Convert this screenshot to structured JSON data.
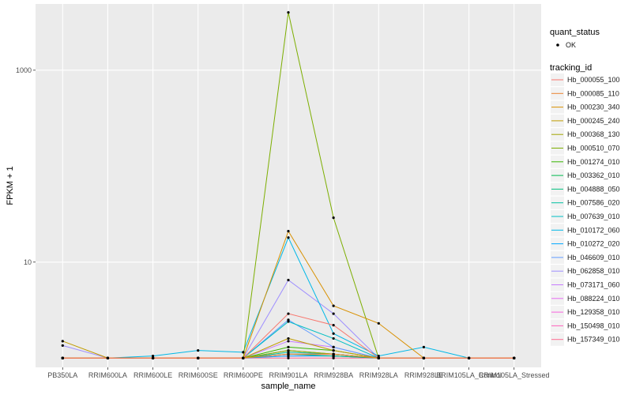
{
  "chart_data": {
    "type": "line",
    "title": "",
    "xlabel": "sample_name",
    "ylabel": "FPKM + 1",
    "y_scale": "log10",
    "ylim": [
      0.8,
      4900
    ],
    "y_ticks": [
      10,
      1000
    ],
    "y_tick_labels": [
      "10",
      "1000"
    ],
    "grid": true,
    "legend_position": "right",
    "categories": [
      "PB350LA",
      "RRIM600LA",
      "RRIM600LE",
      "RRIM600SE",
      "RRIM600PE",
      "RRIM901LA",
      "RRIM928BA",
      "RRIM928LA",
      "RRIM928LE",
      "BRIM105LA_Control",
      "RRIM105LA_Stressed"
    ],
    "point_color": "#000000",
    "shape_legend": {
      "title": "quant_status",
      "entries": [
        "OK"
      ]
    },
    "color_legend_title": "tracking_id",
    "series": [
      {
        "name": "Hb_000055_100",
        "color": "#F8766D",
        "values": [
          1,
          1,
          1,
          1,
          1,
          2.9,
          2.2,
          1,
          1,
          1,
          1
        ]
      },
      {
        "name": "Hb_000085_110",
        "color": "#EA8331",
        "values": [
          1,
          1,
          1,
          1,
          1,
          1.1,
          1.1,
          1,
          1,
          1,
          1
        ]
      },
      {
        "name": "Hb_000230_340",
        "color": "#D89000",
        "values": [
          1,
          1,
          1,
          1,
          1,
          21,
          3.5,
          2.3,
          1,
          1,
          1
        ]
      },
      {
        "name": "Hb_000245_240",
        "color": "#C09B00",
        "values": [
          1.5,
          1,
          1,
          1,
          1,
          1.6,
          1.2,
          1,
          1,
          1,
          1
        ]
      },
      {
        "name": "Hb_000368_130",
        "color": "#A3A500",
        "values": [
          1,
          1,
          1,
          1,
          1,
          1.2,
          1.1,
          1,
          1,
          1,
          1
        ]
      },
      {
        "name": "Hb_000510_070",
        "color": "#7CAE00",
        "values": [
          1,
          1,
          1,
          1,
          1,
          4000,
          29,
          1,
          1,
          1,
          1
        ]
      },
      {
        "name": "Hb_001274_010",
        "color": "#39B600",
        "values": [
          1,
          1,
          1,
          1,
          1,
          1.3,
          1.2,
          1,
          1,
          1,
          1
        ]
      },
      {
        "name": "Hb_003362_010",
        "color": "#00BB4E",
        "values": [
          1,
          1,
          1,
          1,
          1,
          1.2,
          1.1,
          1,
          1,
          1,
          1
        ]
      },
      {
        "name": "Hb_004888_050",
        "color": "#00BF7D",
        "values": [
          1,
          1,
          1,
          1,
          1,
          1.1,
          1.05,
          1,
          1,
          1,
          1
        ]
      },
      {
        "name": "Hb_007586_020",
        "color": "#00C1A3",
        "values": [
          1,
          1,
          1,
          1,
          1,
          1.15,
          1.1,
          1,
          1,
          1,
          1
        ]
      },
      {
        "name": "Hb_007639_010",
        "color": "#00BFC4",
        "values": [
          1,
          1,
          1,
          1,
          1,
          2.4,
          1.6,
          1,
          1,
          1,
          1
        ]
      },
      {
        "name": "Hb_010172_060",
        "color": "#00B8E7",
        "values": [
          1,
          1,
          1.05,
          1.2,
          1.15,
          18,
          1.8,
          1.05,
          1.3,
          1,
          1
        ]
      },
      {
        "name": "Hb_010272_020",
        "color": "#00A9FF",
        "values": [
          1,
          1,
          1,
          1,
          1,
          1.05,
          1.05,
          1,
          1,
          1,
          1
        ]
      },
      {
        "name": "Hb_046609_010",
        "color": "#619CFF",
        "values": [
          1,
          1,
          1,
          1,
          1,
          2.5,
          1.3,
          1,
          1,
          1,
          1
        ]
      },
      {
        "name": "Hb_062858_010",
        "color": "#9E8EFF",
        "values": [
          1.35,
          1,
          1,
          1,
          1,
          6.5,
          2.9,
          1,
          1,
          1,
          1
        ]
      },
      {
        "name": "Hb_073171_060",
        "color": "#C77CFF",
        "values": [
          1,
          1,
          1,
          1,
          1,
          1.5,
          1.3,
          1,
          1,
          1,
          1
        ]
      },
      {
        "name": "Hb_088224_010",
        "color": "#E76BF3",
        "values": [
          1,
          1,
          1,
          1,
          1,
          1.1,
          1.1,
          1,
          1,
          1,
          1
        ]
      },
      {
        "name": "Hb_129358_010",
        "color": "#F863DF",
        "values": [
          1,
          1,
          1,
          1,
          1,
          1.05,
          1.05,
          1,
          1,
          1,
          1
        ]
      },
      {
        "name": "Hb_150498_010",
        "color": "#FF62BC",
        "values": [
          1,
          1,
          1,
          1,
          1,
          1.1,
          1.05,
          1,
          1,
          1,
          1
        ]
      },
      {
        "name": "Hb_157349_010",
        "color": "#FF6C91",
        "values": [
          1,
          1,
          1,
          1,
          1,
          1,
          1,
          1,
          1,
          1,
          1
        ]
      }
    ]
  }
}
